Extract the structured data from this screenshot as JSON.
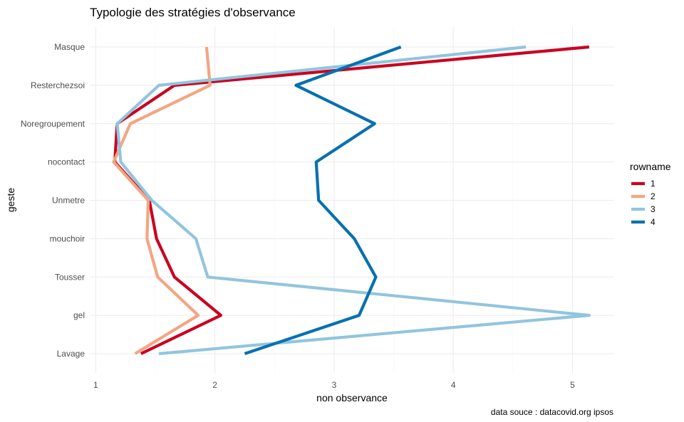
{
  "chart_data": {
    "type": "line",
    "title": "Typologie des stratégies d'observance",
    "xlabel": "non observance",
    "ylabel": "geste",
    "caption": "data souce : datacovid.org ipsos",
    "xlim": [
      0.95,
      5.35
    ],
    "x_ticks": [
      1,
      2,
      3,
      4,
      5
    ],
    "categories": [
      "Lavage",
      "gel",
      "Tousser",
      "mouchoir",
      "Unmetre",
      "nocontact",
      "Noregroupement",
      "Resterchezsoi",
      "Masque"
    ],
    "legend_title": "rowname",
    "legend_position": "right",
    "grid": true,
    "series": [
      {
        "name": "1",
        "color": "#ca0020",
        "values": [
          1.38,
          2.05,
          1.66,
          1.51,
          1.45,
          1.16,
          1.18,
          1.66,
          5.14
        ]
      },
      {
        "name": "2",
        "color": "#f4a582",
        "values": [
          1.33,
          1.86,
          1.52,
          1.43,
          1.44,
          1.15,
          1.29,
          1.96,
          1.93
        ]
      },
      {
        "name": "3",
        "color": "#92c5de",
        "values": [
          1.53,
          5.14,
          1.94,
          1.84,
          1.47,
          1.21,
          1.18,
          1.53,
          4.61
        ]
      },
      {
        "name": "4",
        "color": "#0571b0",
        "values": [
          2.25,
          3.21,
          3.35,
          3.17,
          2.87,
          2.85,
          3.34,
          2.68,
          3.56
        ]
      }
    ]
  }
}
